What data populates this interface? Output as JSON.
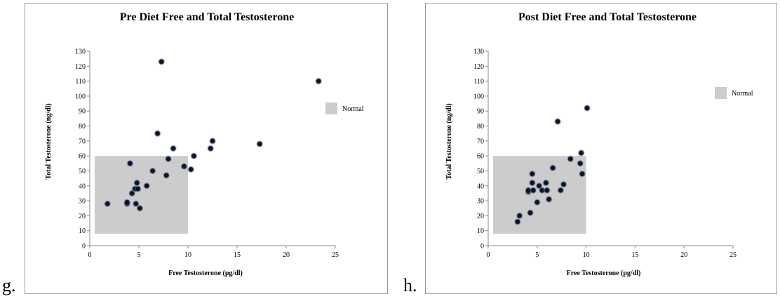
{
  "panel_letters": {
    "left": "g.",
    "right": "h."
  },
  "chart_data": [
    {
      "type": "scatter",
      "title": "Pre Diet Free and Total Testosterone",
      "xlabel": "Free Testosterone (pg/dl)",
      "ylabel": "Total Testosterone (ng/dl)",
      "xlim": [
        0,
        25
      ],
      "ylim": [
        0,
        130
      ],
      "xticks": [
        0,
        5,
        10,
        15,
        20,
        25
      ],
      "yticks": [
        0,
        10,
        20,
        30,
        40,
        50,
        60,
        70,
        80,
        90,
        100,
        110,
        120,
        130
      ],
      "grid": false,
      "normal_range": {
        "x": [
          0.5,
          10
        ],
        "y": [
          8,
          60
        ],
        "label": "Normal",
        "color": "#cccccc"
      },
      "legend": {
        "entries": [
          "Normal"
        ],
        "placement": "right"
      },
      "points_color": "#0a0f1e",
      "points": [
        {
          "x": 1.8,
          "y": 28
        },
        {
          "x": 3.8,
          "y": 28
        },
        {
          "x": 3.8,
          "y": 29
        },
        {
          "x": 4.1,
          "y": 55
        },
        {
          "x": 4.3,
          "y": 35
        },
        {
          "x": 4.6,
          "y": 38
        },
        {
          "x": 4.7,
          "y": 28
        },
        {
          "x": 4.8,
          "y": 42
        },
        {
          "x": 4.9,
          "y": 38
        },
        {
          "x": 5.1,
          "y": 25
        },
        {
          "x": 5.8,
          "y": 40
        },
        {
          "x": 6.4,
          "y": 50
        },
        {
          "x": 6.9,
          "y": 75
        },
        {
          "x": 7.3,
          "y": 123
        },
        {
          "x": 7.8,
          "y": 47
        },
        {
          "x": 8.0,
          "y": 58
        },
        {
          "x": 8.5,
          "y": 65
        },
        {
          "x": 9.6,
          "y": 53
        },
        {
          "x": 10.3,
          "y": 51
        },
        {
          "x": 10.6,
          "y": 60
        },
        {
          "x": 12.3,
          "y": 65
        },
        {
          "x": 12.5,
          "y": 70
        },
        {
          "x": 17.3,
          "y": 68
        },
        {
          "x": 23.3,
          "y": 110
        }
      ]
    },
    {
      "type": "scatter",
      "title": "Post Diet Free and Total Testosterone",
      "xlabel": "Free Testosterone (pg/dl)",
      "ylabel": "Total Testosterone (ng/dl)",
      "xlim": [
        0,
        25
      ],
      "ylim": [
        0,
        130
      ],
      "xticks": [
        0,
        5,
        10,
        15,
        20,
        25
      ],
      "yticks": [
        0,
        10,
        20,
        30,
        40,
        50,
        60,
        70,
        80,
        90,
        100,
        110,
        120,
        130
      ],
      "grid": false,
      "normal_range": {
        "x": [
          0.5,
          10
        ],
        "y": [
          8,
          60
        ],
        "label": "Normal",
        "color": "#cccccc"
      },
      "legend": {
        "entries": [
          "Normal"
        ],
        "placement": "right"
      },
      "points_color": "#0a0f1e",
      "points": [
        {
          "x": 3.0,
          "y": 16
        },
        {
          "x": 3.2,
          "y": 20
        },
        {
          "x": 4.1,
          "y": 36
        },
        {
          "x": 4.1,
          "y": 37
        },
        {
          "x": 4.3,
          "y": 22
        },
        {
          "x": 4.5,
          "y": 48
        },
        {
          "x": 4.5,
          "y": 42
        },
        {
          "x": 4.6,
          "y": 37
        },
        {
          "x": 5.0,
          "y": 29
        },
        {
          "x": 5.2,
          "y": 40
        },
        {
          "x": 5.5,
          "y": 37
        },
        {
          "x": 5.9,
          "y": 42
        },
        {
          "x": 6.0,
          "y": 37
        },
        {
          "x": 6.2,
          "y": 31
        },
        {
          "x": 6.6,
          "y": 52
        },
        {
          "x": 7.1,
          "y": 83
        },
        {
          "x": 7.4,
          "y": 37
        },
        {
          "x": 7.7,
          "y": 41
        },
        {
          "x": 8.4,
          "y": 58
        },
        {
          "x": 9.4,
          "y": 55
        },
        {
          "x": 9.5,
          "y": 62
        },
        {
          "x": 9.6,
          "y": 48
        },
        {
          "x": 10.1,
          "y": 92
        }
      ]
    }
  ]
}
